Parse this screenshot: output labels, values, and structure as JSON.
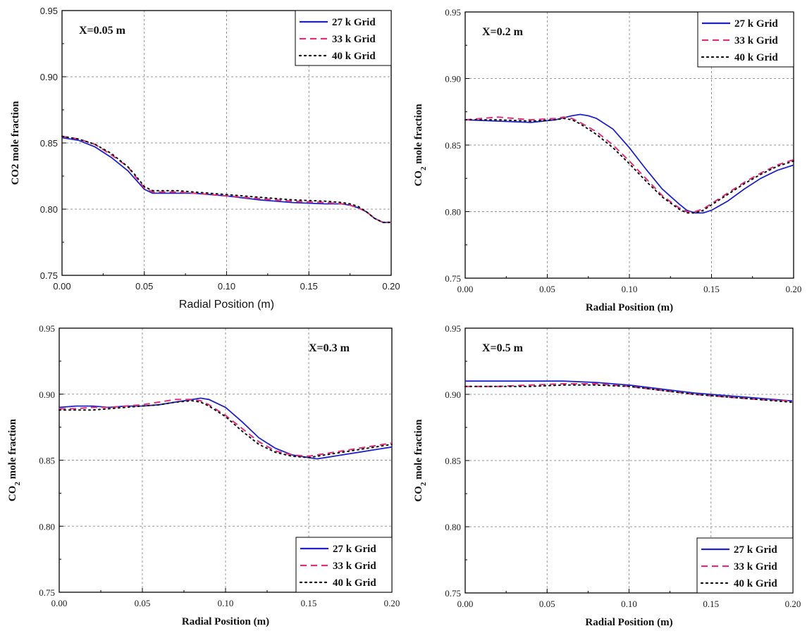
{
  "colors": {
    "grid27": "#1f22c9",
    "grid33": "#e0307a",
    "grid40": "#111111",
    "gridline": "#999999"
  },
  "chart_data": [
    {
      "type": "line",
      "annotation": "X=0.05 m",
      "xlabel": "Radial Position (m)",
      "ylabel": "CO2 mole fraction",
      "ylabel_sub": false,
      "sans_x": true,
      "xlim": [
        0,
        0.2
      ],
      "ylim": [
        0.75,
        0.95
      ],
      "xticks": [
        "0.00",
        "0.05",
        "0.10",
        "0.15",
        "0.20"
      ],
      "yticks": [
        "0.75",
        "0.80",
        "0.85",
        "0.90",
        "0.95"
      ],
      "legend": "top-right",
      "series": [
        {
          "name": "27 k Grid",
          "style": "solid",
          "x": [
            0,
            0.01,
            0.02,
            0.03,
            0.04,
            0.045,
            0.05,
            0.055,
            0.06,
            0.07,
            0.08,
            0.1,
            0.12,
            0.14,
            0.16,
            0.17,
            0.175,
            0.18,
            0.185,
            0.19,
            0.195,
            0.2
          ],
          "y": [
            0.854,
            0.852,
            0.847,
            0.839,
            0.829,
            0.822,
            0.815,
            0.812,
            0.812,
            0.812,
            0.812,
            0.81,
            0.807,
            0.805,
            0.804,
            0.804,
            0.803,
            0.801,
            0.798,
            0.793,
            0.79,
            0.79
          ]
        },
        {
          "name": "33 k Grid",
          "style": "dashed",
          "x": [
            0,
            0.01,
            0.02,
            0.03,
            0.04,
            0.045,
            0.05,
            0.055,
            0.06,
            0.07,
            0.08,
            0.1,
            0.12,
            0.14,
            0.16,
            0.17,
            0.175,
            0.18,
            0.185,
            0.19,
            0.195,
            0.2
          ],
          "y": [
            0.855,
            0.853,
            0.849,
            0.841,
            0.832,
            0.824,
            0.816,
            0.813,
            0.813,
            0.813,
            0.812,
            0.81,
            0.808,
            0.806,
            0.805,
            0.804,
            0.803,
            0.801,
            0.798,
            0.793,
            0.79,
            0.79
          ]
        },
        {
          "name": "40 k Grid",
          "style": "dotted",
          "x": [
            0,
            0.01,
            0.02,
            0.03,
            0.04,
            0.045,
            0.05,
            0.055,
            0.06,
            0.07,
            0.08,
            0.1,
            0.12,
            0.14,
            0.16,
            0.17,
            0.175,
            0.18,
            0.185,
            0.19,
            0.195,
            0.2
          ],
          "y": [
            0.855,
            0.853,
            0.849,
            0.842,
            0.832,
            0.825,
            0.817,
            0.814,
            0.814,
            0.814,
            0.813,
            0.811,
            0.809,
            0.807,
            0.806,
            0.805,
            0.804,
            0.802,
            0.798,
            0.793,
            0.79,
            0.79
          ]
        }
      ]
    },
    {
      "type": "line",
      "annotation": "X=0.2 m",
      "xlabel": "Radial Position (m)",
      "ylabel": "CO",
      "ylabel_sub": true,
      "sans_x": false,
      "xlim": [
        0,
        0.2
      ],
      "ylim": [
        0.75,
        0.95
      ],
      "xticks": [
        "0.00",
        "0.05",
        "0.10",
        "0.15",
        "0.20"
      ],
      "yticks": [
        "0.75",
        "0.80",
        "0.85",
        "0.90",
        "0.95"
      ],
      "legend": "top-right",
      "series": [
        {
          "name": "27 k Grid",
          "style": "solid",
          "x": [
            0,
            0.02,
            0.04,
            0.055,
            0.065,
            0.07,
            0.075,
            0.08,
            0.09,
            0.1,
            0.11,
            0.12,
            0.13,
            0.135,
            0.14,
            0.145,
            0.15,
            0.16,
            0.17,
            0.18,
            0.19,
            0.2
          ],
          "y": [
            0.869,
            0.868,
            0.867,
            0.869,
            0.872,
            0.873,
            0.872,
            0.87,
            0.862,
            0.848,
            0.832,
            0.817,
            0.806,
            0.801,
            0.799,
            0.799,
            0.801,
            0.808,
            0.817,
            0.825,
            0.831,
            0.835
          ]
        },
        {
          "name": "33 k Grid",
          "style": "dashed",
          "x": [
            0,
            0.02,
            0.04,
            0.055,
            0.06,
            0.065,
            0.07,
            0.08,
            0.09,
            0.1,
            0.11,
            0.12,
            0.13,
            0.135,
            0.14,
            0.145,
            0.15,
            0.16,
            0.17,
            0.18,
            0.19,
            0.2
          ],
          "y": [
            0.869,
            0.871,
            0.869,
            0.87,
            0.871,
            0.87,
            0.867,
            0.86,
            0.85,
            0.838,
            0.825,
            0.812,
            0.803,
            0.8,
            0.8,
            0.802,
            0.806,
            0.814,
            0.822,
            0.829,
            0.835,
            0.839
          ]
        },
        {
          "name": "40 k Grid",
          "style": "dotted",
          "x": [
            0,
            0.02,
            0.04,
            0.055,
            0.06,
            0.065,
            0.07,
            0.08,
            0.09,
            0.1,
            0.11,
            0.12,
            0.13,
            0.135,
            0.14,
            0.145,
            0.15,
            0.16,
            0.17,
            0.18,
            0.19,
            0.2
          ],
          "y": [
            0.869,
            0.869,
            0.868,
            0.869,
            0.87,
            0.869,
            0.866,
            0.858,
            0.848,
            0.836,
            0.823,
            0.811,
            0.802,
            0.799,
            0.799,
            0.801,
            0.805,
            0.813,
            0.821,
            0.828,
            0.834,
            0.838
          ]
        }
      ]
    },
    {
      "type": "line",
      "annotation": "X=0.3 m",
      "xlabel": "Radial Position (m)",
      "ylabel": "CO",
      "ylabel_sub": true,
      "sans_x": false,
      "xlim": [
        0,
        0.2
      ],
      "ylim": [
        0.75,
        0.95
      ],
      "xticks": [
        "0.00",
        "0.05",
        "0.10",
        "0.15",
        "0.20"
      ],
      "yticks": [
        "0.75",
        "0.80",
        "0.85",
        "0.90",
        "0.95"
      ],
      "legend": "bottom-right",
      "series": [
        {
          "name": "27 k Grid",
          "style": "solid",
          "x": [
            0,
            0.01,
            0.02,
            0.03,
            0.04,
            0.05,
            0.06,
            0.07,
            0.08,
            0.085,
            0.09,
            0.1,
            0.11,
            0.12,
            0.13,
            0.14,
            0.15,
            0.155,
            0.16,
            0.17,
            0.18,
            0.19,
            0.2
          ],
          "y": [
            0.89,
            0.891,
            0.891,
            0.89,
            0.891,
            0.891,
            0.892,
            0.894,
            0.896,
            0.897,
            0.896,
            0.89,
            0.879,
            0.867,
            0.859,
            0.854,
            0.852,
            0.851,
            0.852,
            0.854,
            0.856,
            0.858,
            0.86
          ]
        },
        {
          "name": "33 k Grid",
          "style": "dashed",
          "x": [
            0,
            0.01,
            0.02,
            0.03,
            0.04,
            0.05,
            0.06,
            0.07,
            0.08,
            0.085,
            0.09,
            0.1,
            0.11,
            0.12,
            0.13,
            0.14,
            0.15,
            0.155,
            0.16,
            0.17,
            0.18,
            0.19,
            0.2
          ],
          "y": [
            0.889,
            0.889,
            0.89,
            0.89,
            0.891,
            0.892,
            0.894,
            0.896,
            0.896,
            0.895,
            0.892,
            0.884,
            0.874,
            0.864,
            0.857,
            0.854,
            0.853,
            0.854,
            0.855,
            0.857,
            0.859,
            0.861,
            0.863
          ]
        },
        {
          "name": "40 k Grid",
          "style": "dotted",
          "x": [
            0,
            0.01,
            0.02,
            0.03,
            0.04,
            0.05,
            0.06,
            0.07,
            0.08,
            0.085,
            0.09,
            0.1,
            0.11,
            0.12,
            0.13,
            0.14,
            0.15,
            0.155,
            0.16,
            0.17,
            0.18,
            0.19,
            0.2
          ],
          "y": [
            0.888,
            0.888,
            0.888,
            0.889,
            0.89,
            0.891,
            0.892,
            0.894,
            0.895,
            0.894,
            0.891,
            0.883,
            0.872,
            0.862,
            0.856,
            0.853,
            0.852,
            0.853,
            0.854,
            0.856,
            0.858,
            0.86,
            0.862
          ]
        }
      ]
    },
    {
      "type": "line",
      "annotation": "X=0.5 m",
      "xlabel": "Radial Position (m)",
      "ylabel": "CO",
      "ylabel_sub": true,
      "sans_x": false,
      "xlim": [
        0,
        0.2
      ],
      "ylim": [
        0.75,
        0.95
      ],
      "xticks": [
        "0.00",
        "0.05",
        "0.10",
        "0.15",
        "0.20"
      ],
      "yticks": [
        "0.75",
        "0.80",
        "0.85",
        "0.90",
        "0.95"
      ],
      "legend": "bottom-right",
      "series": [
        {
          "name": "27 k Grid",
          "style": "solid",
          "x": [
            0,
            0.02,
            0.04,
            0.06,
            0.08,
            0.1,
            0.12,
            0.14,
            0.16,
            0.18,
            0.2
          ],
          "y": [
            0.91,
            0.91,
            0.91,
            0.91,
            0.909,
            0.907,
            0.904,
            0.901,
            0.899,
            0.897,
            0.895
          ]
        },
        {
          "name": "33 k Grid",
          "style": "dashed",
          "x": [
            0,
            0.02,
            0.04,
            0.06,
            0.08,
            0.1,
            0.12,
            0.14,
            0.16,
            0.18,
            0.2
          ],
          "y": [
            0.906,
            0.906,
            0.907,
            0.908,
            0.908,
            0.906,
            0.903,
            0.9,
            0.898,
            0.896,
            0.895
          ]
        },
        {
          "name": "40 k Grid",
          "style": "dotted",
          "x": [
            0,
            0.02,
            0.04,
            0.06,
            0.08,
            0.1,
            0.12,
            0.14,
            0.16,
            0.18,
            0.2
          ],
          "y": [
            0.906,
            0.906,
            0.906,
            0.907,
            0.907,
            0.906,
            0.903,
            0.9,
            0.898,
            0.896,
            0.894
          ]
        }
      ]
    }
  ]
}
